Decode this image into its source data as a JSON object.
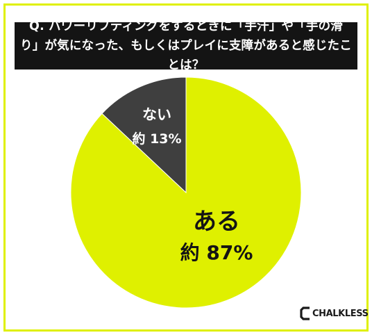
{
  "question": "Q. パワーリフティングをするときに「手汗」や「手の滑り」が気になった、もしくはプレイに支障があると感じたことは？",
  "chart_data": {
    "type": "pie",
    "title": "Q. パワーリフティングをするときに「手汗」や「手の滑り」が気になった、もしくはプレイに支障があると感じたことは？",
    "categories": [
      "ある",
      "ない"
    ],
    "values": [
      87,
      13
    ],
    "value_labels": [
      "約 87%",
      "約 13%"
    ],
    "colors": [
      "#dff000",
      "#3f3f3f"
    ],
    "label_colors": [
      "#141414",
      "#ffffff"
    ],
    "start_angle_deg": -47,
    "direction": "counterclockwise-from-start"
  },
  "brand": {
    "name": "CHALKLESS",
    "accent": "#dff000"
  }
}
